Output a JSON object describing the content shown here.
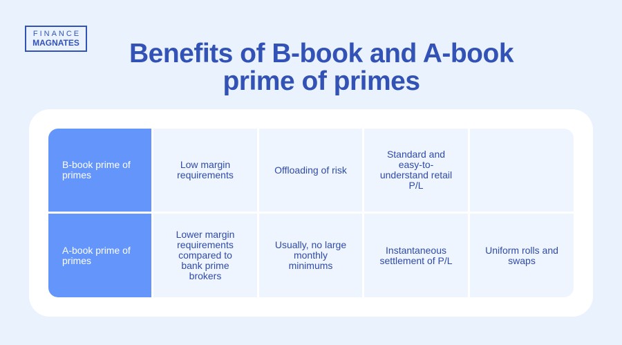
{
  "logo": {
    "line1": "FINANCE",
    "line2": "MAGNATES"
  },
  "title": {
    "line1": "Benefits of B-book and A-book",
    "line2": "prime of primes"
  },
  "rows": [
    {
      "header": "B-book prime of primes",
      "cells": [
        "Low margin requirements",
        "Offloading of risk",
        "Standard and easy-to-understand retail P/L",
        ""
      ]
    },
    {
      "header": "A-book prime of primes",
      "cells": [
        "Lower margin requirements compared to bank prime brokers",
        "Usually, no large monthly minimums",
        "Instantaneous settlement of P/L",
        "Uniform rolls and swaps"
      ]
    }
  ],
  "colors": {
    "accent": "#3352b5",
    "header_bg": "#6495fa",
    "cell_bg": "#eef5fe"
  }
}
